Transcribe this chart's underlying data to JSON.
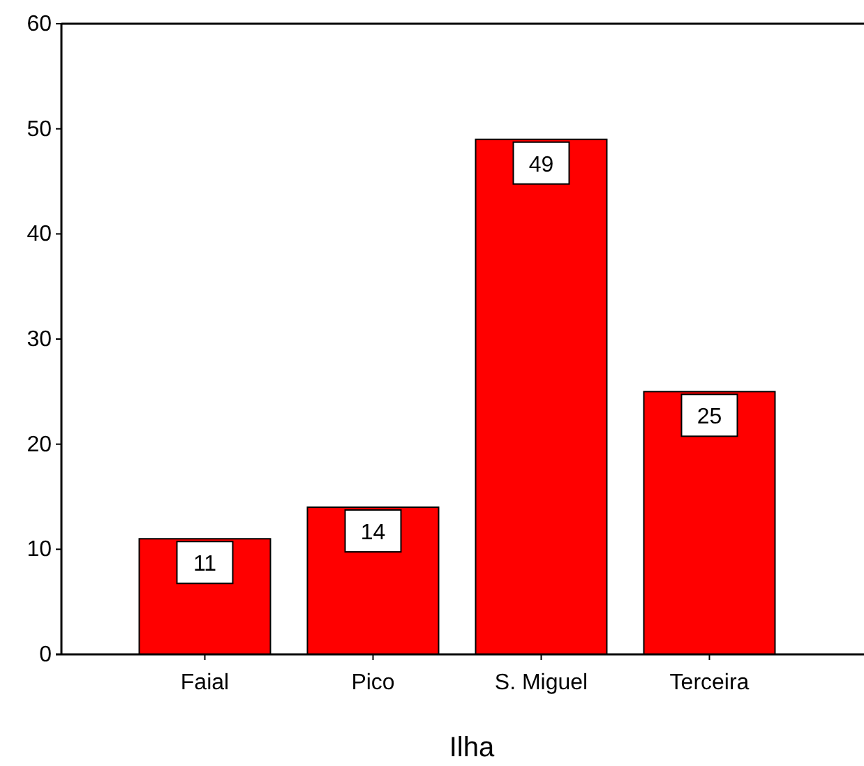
{
  "chart_data": {
    "type": "bar",
    "xlabel": "Ilha",
    "categories": [
      "Faial",
      "Pico",
      "S. Miguel",
      "Terceira"
    ],
    "values": [
      11,
      14,
      49,
      25
    ],
    "color": "#ff0000",
    "ylim": [
      0,
      60
    ],
    "yticks": [
      0,
      10,
      20,
      30,
      40,
      50,
      60
    ],
    "data_labels": true,
    "grid": false
  }
}
